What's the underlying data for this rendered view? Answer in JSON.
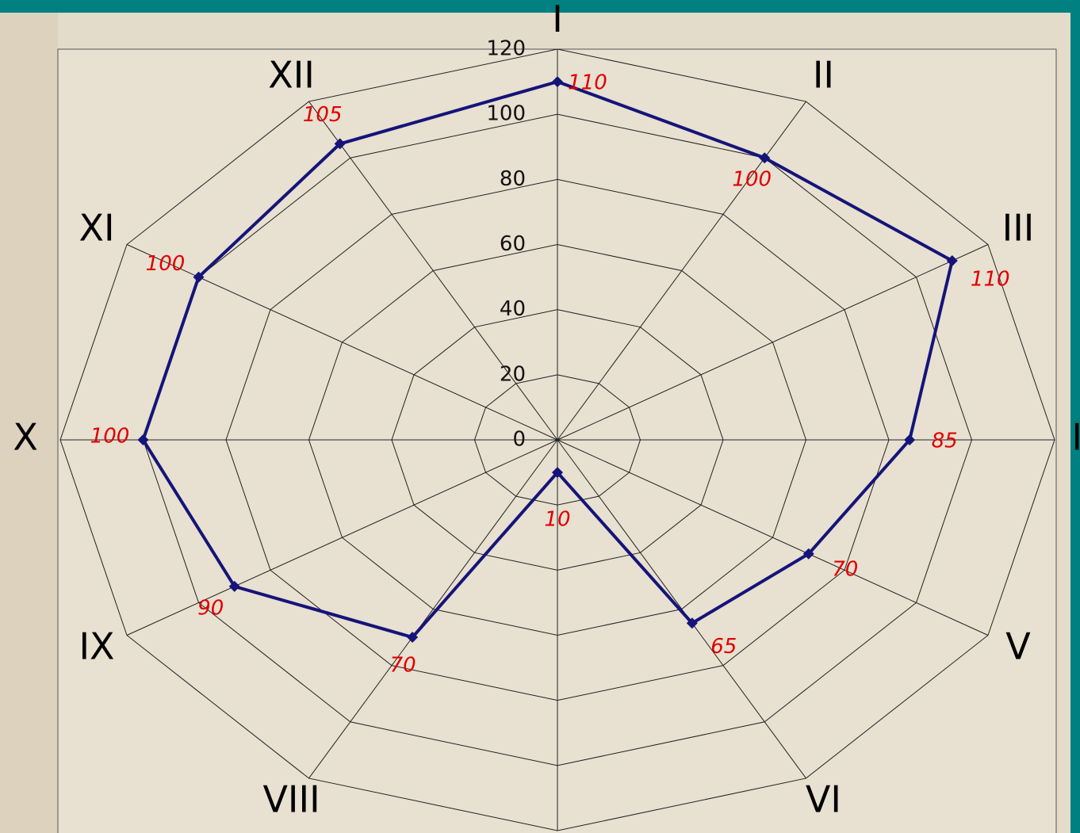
{
  "chart_data": {
    "type": "radar",
    "categories": [
      "I",
      "II",
      "III",
      "IV",
      "V",
      "VI",
      null,
      "VIII",
      "IX",
      "X",
      "XI",
      "XII"
    ],
    "series": [
      {
        "color": "#14147a",
        "values": [
          110,
          100,
          110,
          85,
          70,
          65,
          10,
          70,
          90,
          100,
          100,
          105
        ]
      }
    ],
    "value_label_color": "#e00000",
    "rlim": [
      0,
      120
    ],
    "rticks": [
      0,
      20,
      40,
      60,
      80,
      100,
      120
    ],
    "grid": true
  }
}
